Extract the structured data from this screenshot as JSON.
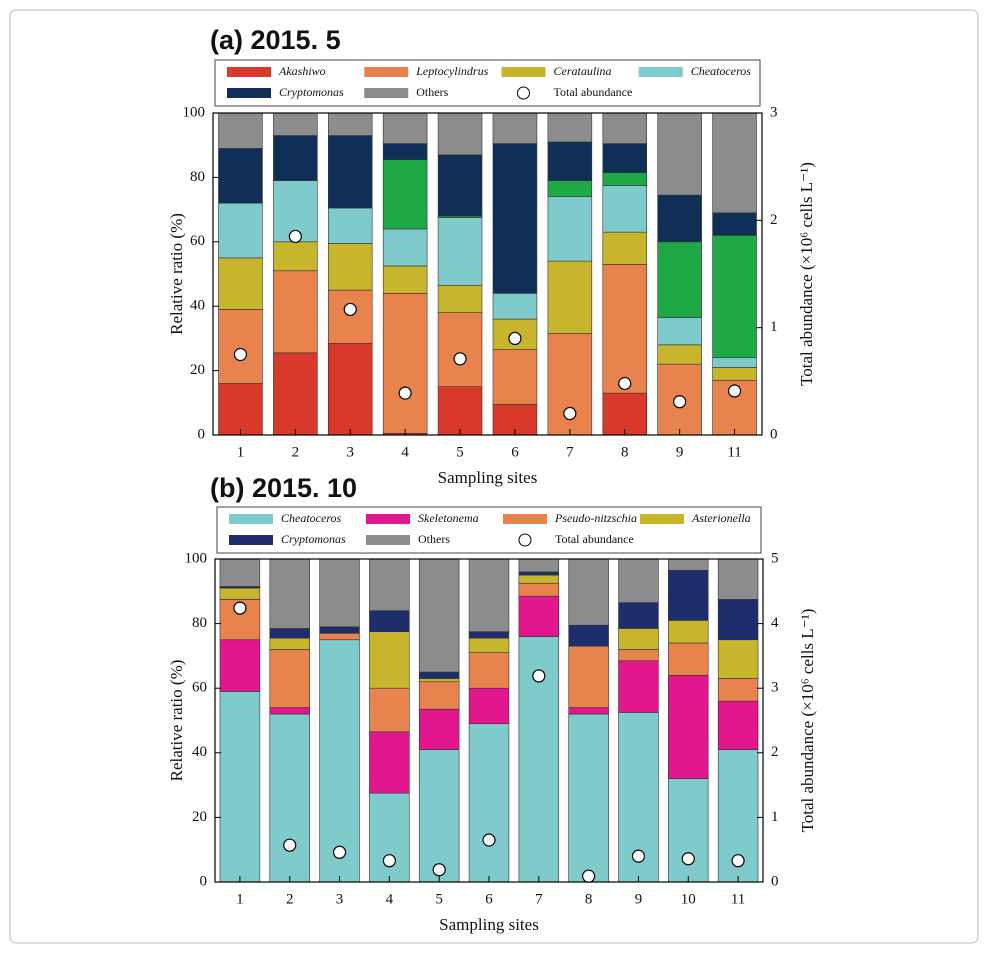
{
  "chart_data": [
    {
      "type": "bar",
      "stacked": true,
      "title": "(a) 2015. 5",
      "xlabel": "Sampling sites",
      "ylabel": "Relative ratio (%)",
      "y2label": "Total abundance (×10⁶ cells L⁻¹)",
      "categories": [
        "1",
        "2",
        "3",
        "4",
        "5",
        "6",
        "7",
        "8",
        "9",
        "11"
      ],
      "ylim": [
        0,
        100
      ],
      "yticks": [
        0,
        20,
        40,
        60,
        80,
        100
      ],
      "y2lim": [
        0,
        3
      ],
      "y2ticks": [
        0,
        1,
        2,
        3
      ],
      "series": [
        {
          "name": "Akashiwo",
          "italic": true,
          "color": "#d8392b",
          "values": [
            16,
            25.5,
            28.5,
            0.5,
            15,
            9.5,
            0,
            13,
            0,
            0
          ]
        },
        {
          "name": "Leptocylindrus",
          "italic": true,
          "color": "#e8834d",
          "values": [
            23,
            25.5,
            16.5,
            43.5,
            23,
            17,
            31.5,
            40,
            22,
            17
          ]
        },
        {
          "name": "Cerataulina",
          "italic": true,
          "color": "#c8b52e",
          "values": [
            16,
            9,
            14.5,
            8.5,
            8.5,
            9.5,
            22.5,
            10,
            6,
            4
          ]
        },
        {
          "name": "Cheatoceros",
          "italic": true,
          "color": "#7fcaca",
          "values": [
            17,
            19,
            11,
            11.5,
            21,
            8,
            20,
            14.5,
            8.5,
            3
          ]
        },
        {
          "name": null,
          "color": "#1fa846",
          "values": [
            0,
            0,
            0,
            21.5,
            0.5,
            0,
            5,
            4,
            23.5,
            38
          ]
        },
        {
          "name": "Cryptomonas",
          "italic": true,
          "color": "#0f2f57",
          "values": [
            17,
            14,
            22.5,
            5,
            19,
            46.5,
            12,
            9,
            14.5,
            7
          ]
        },
        {
          "name": "Others",
          "color": "#8c8c8c",
          "values": [
            11,
            7,
            7,
            9.5,
            13,
            9.5,
            9,
            9.5,
            25.5,
            31
          ]
        },
        {
          "name": "Total abundance",
          "type": "scatter",
          "axis": "y2",
          "color": "#ffffff",
          "values": [
            0.75,
            1.85,
            1.17,
            0.39,
            0.71,
            0.9,
            0.2,
            0.48,
            0.31,
            0.41
          ]
        }
      ]
    },
    {
      "type": "bar",
      "stacked": true,
      "title": "(b) 2015. 10",
      "xlabel": "Sampling sites",
      "ylabel": "Relative ratio (%)",
      "y2label": "Total abundance (×10⁶ cells L⁻¹)",
      "categories": [
        "1",
        "2",
        "3",
        "4",
        "5",
        "6",
        "7",
        "8",
        "9",
        "10",
        "11"
      ],
      "ylim": [
        0,
        100
      ],
      "yticks": [
        0,
        20,
        40,
        60,
        80,
        100
      ],
      "y2lim": [
        0,
        5
      ],
      "y2ticks": [
        0,
        1,
        2,
        3,
        4,
        5
      ],
      "series": [
        {
          "name": "Cheatoceros",
          "italic": true,
          "color": "#7fcaca",
          "values": [
            59,
            52,
            75,
            27.5,
            41,
            49,
            76,
            52,
            52.5,
            32,
            41
          ]
        },
        {
          "name": "Skeletonema",
          "italic": true,
          "color": "#e2168d",
          "values": [
            16,
            2,
            0,
            19,
            12.5,
            11,
            12.5,
            2,
            16,
            32,
            15
          ]
        },
        {
          "name": "Pseudo-nitzschia",
          "italic": true,
          "color": "#e8834d",
          "values": [
            12.5,
            18,
            2,
            13.5,
            8.5,
            11,
            4,
            19,
            3.5,
            10,
            7
          ]
        },
        {
          "name": "Asterionella",
          "italic": true,
          "color": "#c8b52e",
          "values": [
            3.5,
            3.5,
            0,
            17.5,
            1,
            4.5,
            2.5,
            0,
            6.5,
            7,
            12
          ]
        },
        {
          "name": "Cryptomonas",
          "italic": true,
          "color": "#1e2d6b",
          "values": [
            0.5,
            3,
            2,
            6.5,
            2,
            2,
            1,
            6.5,
            8,
            15.5,
            12.5
          ]
        },
        {
          "name": "Others",
          "color": "#8c8c8c",
          "values": [
            8.5,
            21.5,
            21,
            16,
            35,
            22.5,
            4,
            20.5,
            13.5,
            3.5,
            12.5
          ]
        },
        {
          "name": "Total abundance",
          "type": "scatter",
          "axis": "y2",
          "color": "#ffffff",
          "values": [
            4.24,
            0.57,
            0.46,
            0.33,
            0.19,
            0.65,
            3.19,
            0.09,
            0.4,
            0.36,
            0.33
          ]
        }
      ]
    }
  ]
}
